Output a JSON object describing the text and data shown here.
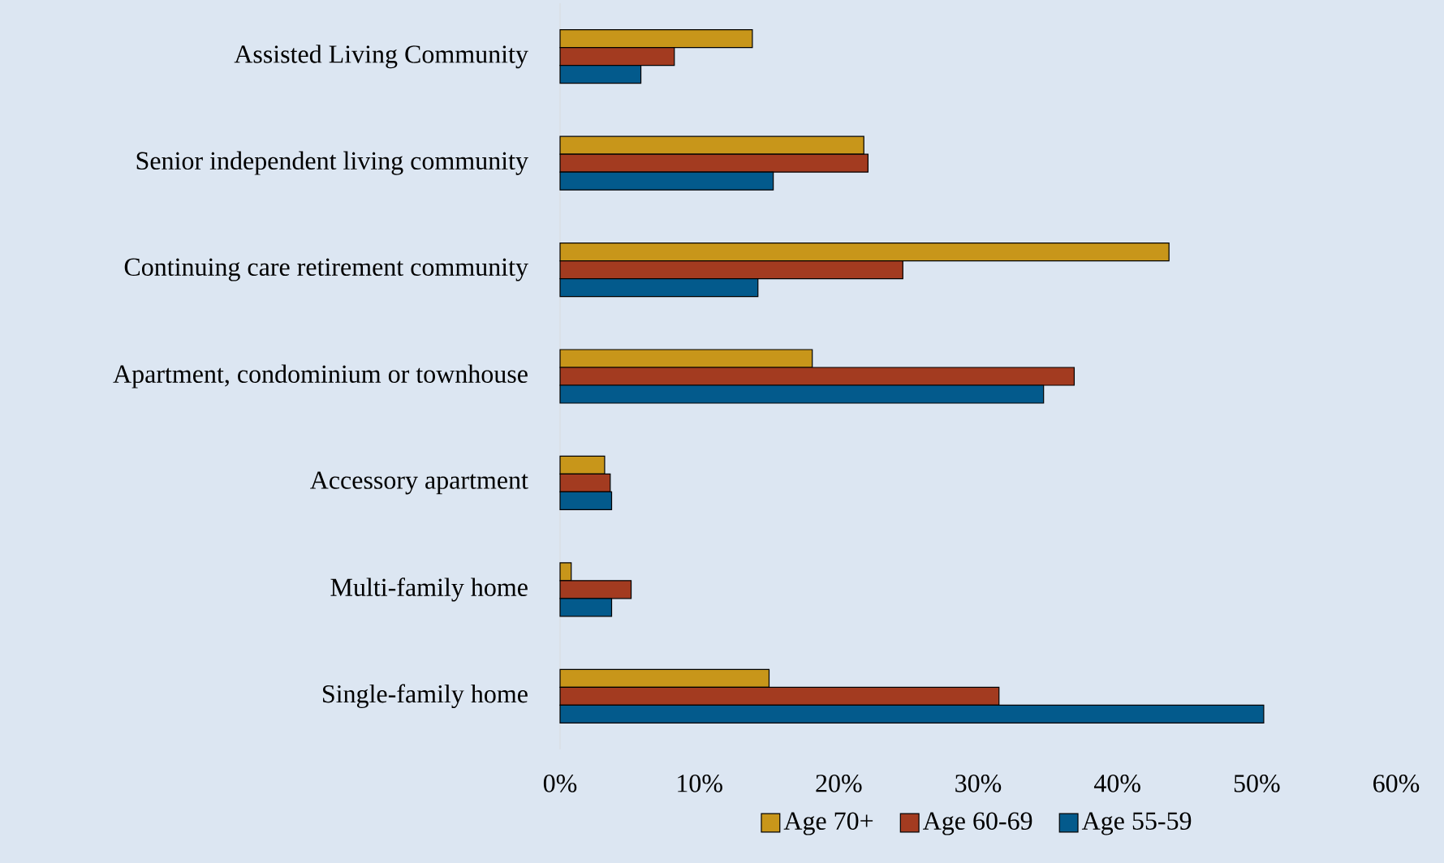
{
  "chart_data": {
    "type": "bar",
    "orientation": "horizontal",
    "categories": [
      "Assisted Living Community",
      "Senior independent living community",
      "Continuing care retirement community",
      "Apartment, condominium or townhouse",
      "Accessory apartment",
      "Multi-family home",
      "Single-family home"
    ],
    "series": [
      {
        "name": "Age 70+",
        "color": "#c8961a",
        "values": [
          13.8,
          21.8,
          43.7,
          18.1,
          3.2,
          0.8,
          15.0
        ]
      },
      {
        "name": "Age 60-69",
        "color": "#a33b20",
        "values": [
          8.2,
          22.1,
          24.6,
          36.9,
          3.6,
          5.1,
          31.5
        ]
      },
      {
        "name": "Age 55-59",
        "color": "#035a8c",
        "values": [
          5.8,
          15.3,
          14.2,
          34.7,
          3.7,
          3.7,
          50.5
        ]
      }
    ],
    "xlim": [
      0,
      60
    ],
    "xticks": [
      {
        "value": 0,
        "label": "0%"
      },
      {
        "value": 10,
        "label": "10%"
      },
      {
        "value": 20,
        "label": "20%"
      },
      {
        "value": 30,
        "label": "30%"
      },
      {
        "value": 40,
        "label": "40%"
      },
      {
        "value": 50,
        "label": "50%"
      },
      {
        "value": 60,
        "label": "60%"
      }
    ],
    "legend": "bottom",
    "grid": false
  }
}
